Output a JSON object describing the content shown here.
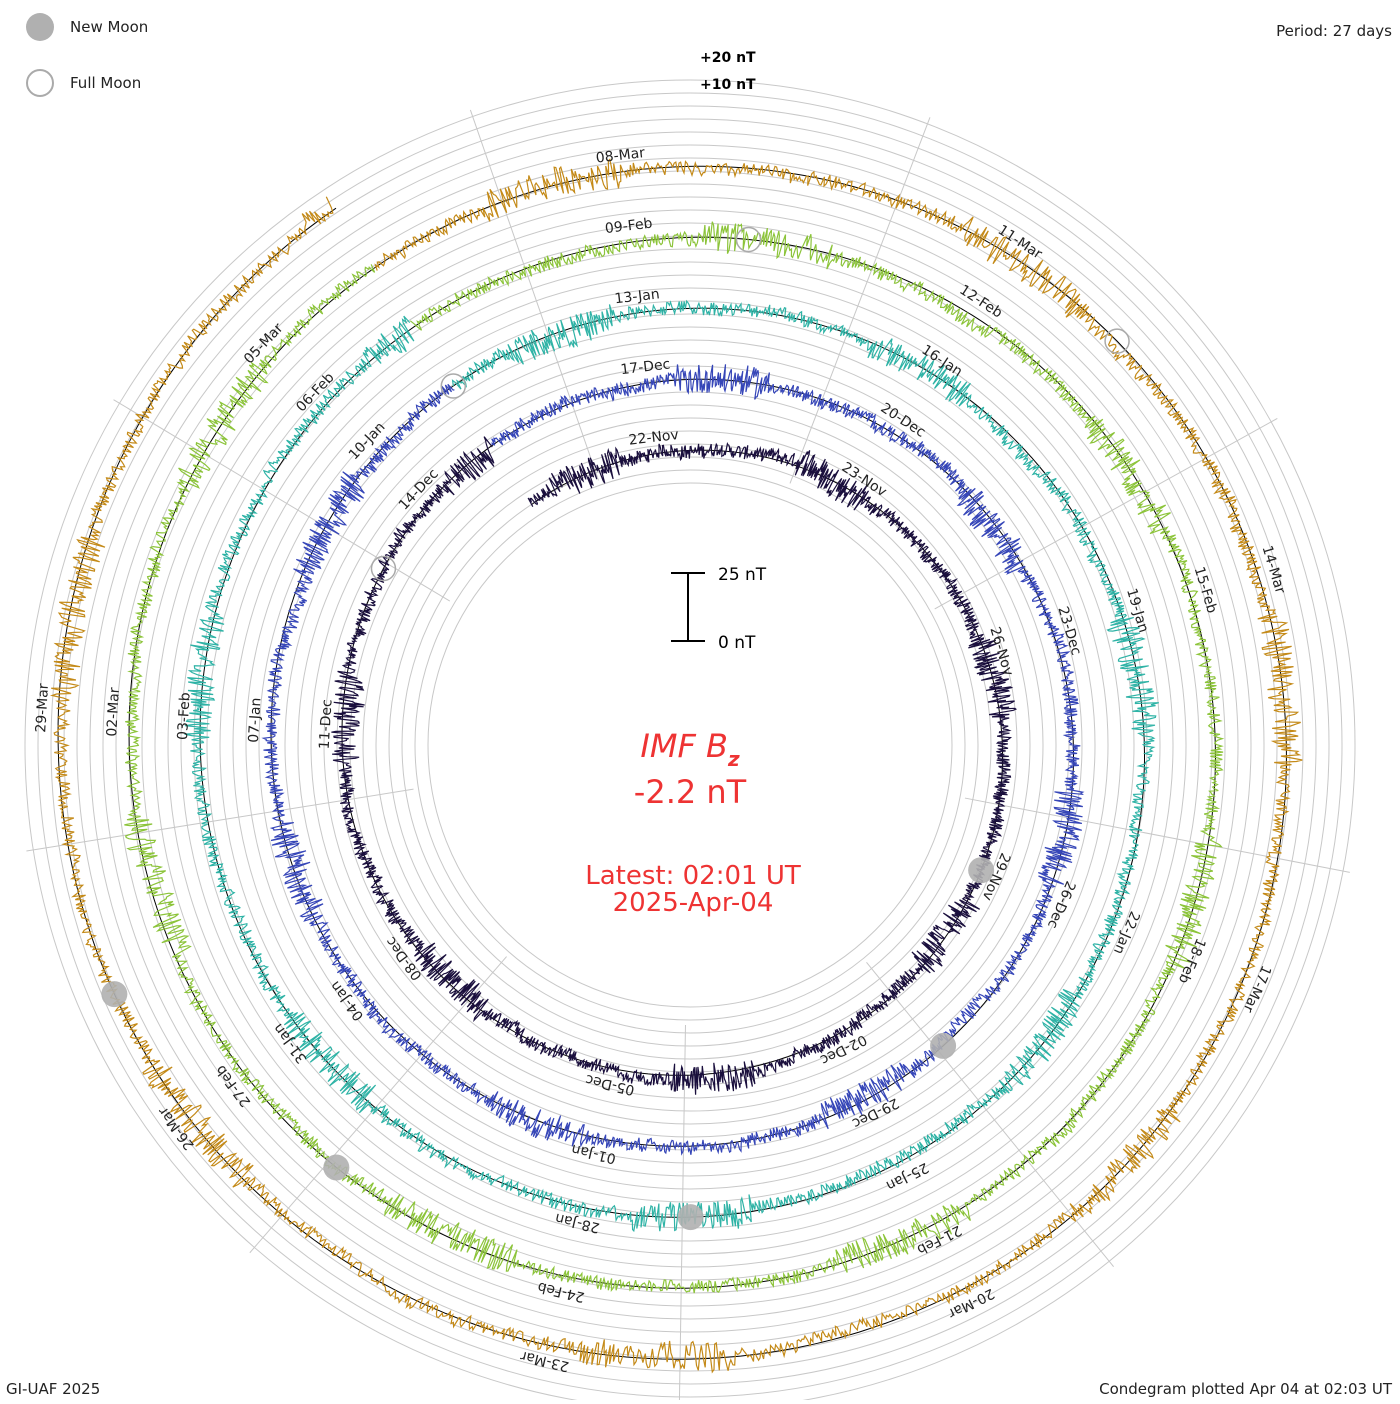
{
  "header": {
    "period_label": "Period: 27 days"
  },
  "legend": {
    "new_moon_label": "New Moon",
    "full_moon_label": "Full Moon"
  },
  "footer": {
    "credit": "GI-UAF 2025",
    "plotted": "Condegram plotted Apr 04 at 02:03 UT"
  },
  "colors": {
    "latest_text": "#ee3333",
    "grid": "#c8c8c8",
    "baseline": "#000000",
    "moon": "#b0b0b0"
  },
  "chart_data": {
    "type": "line",
    "plot_style": "condegram spiral",
    "quantity": "IMF B_z",
    "period_days": 27,
    "start_date": "2024-11-20",
    "end_date": "2025-04-04",
    "scale_labels": {
      "top": "25 nT",
      "bottom": "0 nT"
    },
    "ring_labels": [
      "+20 nT",
      "+10 nT"
    ],
    "center": {
      "title_main": "IMF B",
      "title_sub": "z",
      "current_value": "-2.2 nT",
      "latest_time": "Latest: 02:01 UT",
      "latest_date": "2025-Apr-04"
    },
    "date_labels": [
      "22-Nov",
      "23-Nov",
      "26-Nov",
      "29-Nov",
      "02-Dec",
      "05-Dec",
      "08-Dec",
      "11-Dec",
      "14-Dec",
      "17-Dec",
      "20-Dec",
      "23-Dec",
      "26-Dec",
      "29-Dec",
      "01-Jan",
      "04-Jan",
      "07-Jan",
      "10-Jan",
      "13-Jan",
      "16-Jan",
      "19-Jan",
      "22-Jan",
      "25-Jan",
      "28-Jan",
      "31-Jan",
      "03-Feb",
      "06-Feb",
      "09-Feb",
      "12-Feb",
      "15-Feb",
      "18-Feb",
      "21-Feb",
      "24-Feb",
      "27-Feb",
      "02-Mar",
      "05-Mar",
      "08-Mar",
      "11-Mar",
      "14-Mar",
      "17-Mar",
      "20-Mar",
      "23-Mar",
      "26-Mar",
      "29-Mar"
    ],
    "series": [
      {
        "start": "2024-11-20",
        "end": "2024-12-17",
        "color": "#1a0f3d"
      },
      {
        "start": "2024-12-17",
        "end": "2025-01-13",
        "color": "#3646b8"
      },
      {
        "start": "2025-01-13",
        "end": "2025-02-09",
        "color": "#2fb3a6"
      },
      {
        "start": "2025-02-09",
        "end": "2025-03-08",
        "color": "#8cc43a"
      },
      {
        "start": "2025-03-08",
        "end": "2025-04-04",
        "color": "#c48a18"
      }
    ],
    "new_moon_dates": [
      "2024-12-01",
      "2024-12-30",
      "2025-01-29",
      "2025-02-28",
      "2025-03-29"
    ],
    "full_moon_dates": [
      "2024-12-15",
      "2025-01-13",
      "2025-02-12",
      "2025-03-14"
    ]
  }
}
